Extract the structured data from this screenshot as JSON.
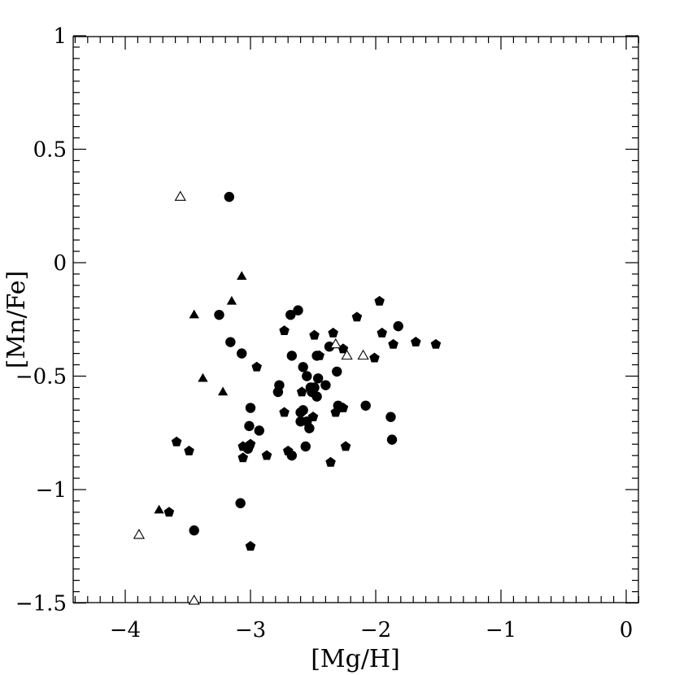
{
  "chart_data": {
    "type": "scatter",
    "title": "",
    "xlabel": "[Mg/H]",
    "ylabel": "[Mn/Fe]",
    "xlim": [
      -4.5,
      0.1
    ],
    "ylim": [
      -1.5,
      1.0
    ],
    "xticks": [
      -4,
      -3,
      -2,
      -1,
      0
    ],
    "xtick_labels": [
      "−4",
      "−3",
      "−2",
      "−1",
      "0"
    ],
    "yticks": [
      1,
      0.5,
      0,
      -0.5,
      -1,
      -1.5
    ],
    "ytick_labels": [
      "1",
      "0.5",
      "0",
      "−0.5",
      "−1",
      "−1.5"
    ],
    "grid": false,
    "series": [
      {
        "marker": "filled-circle",
        "points": [
          [
            -3.17,
            0.29
          ],
          [
            -3.25,
            -0.23
          ],
          [
            -3.16,
            -0.35
          ],
          [
            -3.07,
            -0.4
          ],
          [
            -3.0,
            -0.64
          ],
          [
            -3.01,
            -0.72
          ],
          [
            -2.93,
            -0.74
          ],
          [
            -3.02,
            -0.82
          ],
          [
            -3.08,
            -1.06
          ],
          [
            -3.45,
            -1.18
          ],
          [
            -2.77,
            -0.54
          ],
          [
            -2.78,
            -0.57
          ],
          [
            -2.68,
            -0.23
          ],
          [
            -2.62,
            -0.21
          ],
          [
            -2.67,
            -0.41
          ],
          [
            -2.58,
            -0.46
          ],
          [
            -2.55,
            -0.5
          ],
          [
            -2.47,
            -0.41
          ],
          [
            -2.46,
            -0.51
          ],
          [
            -2.49,
            -0.55
          ],
          [
            -2.52,
            -0.55
          ],
          [
            -2.51,
            -0.57
          ],
          [
            -2.47,
            -0.59
          ],
          [
            -2.4,
            -0.54
          ],
          [
            -2.37,
            -0.37
          ],
          [
            -2.31,
            -0.48
          ],
          [
            -2.58,
            -0.65
          ],
          [
            -2.6,
            -0.66
          ],
          [
            -2.6,
            -0.7
          ],
          [
            -2.55,
            -0.7
          ],
          [
            -2.53,
            -0.73
          ],
          [
            -2.56,
            -0.81
          ],
          [
            -2.67,
            -0.85
          ],
          [
            -2.3,
            -0.63
          ],
          [
            -2.08,
            -0.63
          ],
          [
            -1.82,
            -0.28
          ],
          [
            -1.88,
            -0.68
          ],
          [
            -1.87,
            -0.78
          ]
        ]
      },
      {
        "marker": "filled-pentagon",
        "points": [
          [
            -2.73,
            -0.3
          ],
          [
            -2.95,
            -0.46
          ],
          [
            -2.59,
            -0.57
          ],
          [
            -2.49,
            -0.32
          ],
          [
            -2.45,
            -0.41
          ],
          [
            -2.34,
            -0.31
          ],
          [
            -2.26,
            -0.38
          ],
          [
            -2.15,
            -0.24
          ],
          [
            -1.97,
            -0.17
          ],
          [
            -1.95,
            -0.31
          ],
          [
            -1.86,
            -0.36
          ],
          [
            -1.68,
            -0.35
          ],
          [
            -1.52,
            -0.36
          ],
          [
            -2.01,
            -0.42
          ],
          [
            -2.73,
            -0.66
          ],
          [
            -2.5,
            -0.68
          ],
          [
            -2.32,
            -0.66
          ],
          [
            -2.26,
            -0.64
          ],
          [
            -2.7,
            -0.83
          ],
          [
            -2.87,
            -0.85
          ],
          [
            -3.0,
            -0.8
          ],
          [
            -3.06,
            -0.81
          ],
          [
            -3.06,
            -0.86
          ],
          [
            -3.59,
            -0.79
          ],
          [
            -3.49,
            -0.83
          ],
          [
            -3.65,
            -1.1
          ],
          [
            -3.0,
            -1.25
          ],
          [
            -2.36,
            -0.88
          ],
          [
            -2.24,
            -0.81
          ]
        ]
      },
      {
        "marker": "filled-triangle",
        "points": [
          [
            -3.07,
            -0.06
          ],
          [
            -3.15,
            -0.17
          ],
          [
            -3.45,
            -0.23
          ],
          [
            -3.38,
            -0.51
          ],
          [
            -3.22,
            -0.57
          ],
          [
            -3.73,
            -1.09
          ]
        ]
      },
      {
        "marker": "open-triangle",
        "points": [
          [
            -3.56,
            0.29
          ],
          [
            -2.32,
            -0.36
          ],
          [
            -2.23,
            -0.41
          ],
          [
            -2.1,
            -0.41
          ],
          [
            -3.89,
            -1.2
          ],
          [
            -3.45,
            -1.49
          ]
        ]
      }
    ]
  },
  "colors": {
    "ink": "#000000",
    "background": "#ffffff"
  }
}
